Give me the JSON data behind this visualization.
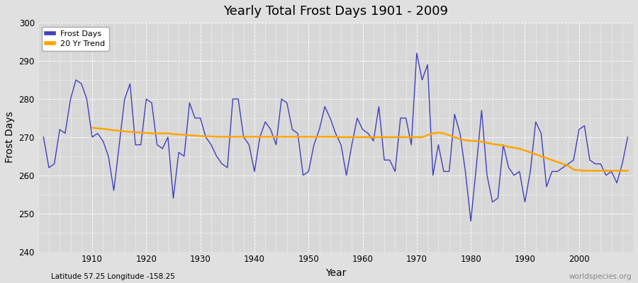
{
  "title": "Yearly Total Frost Days 1901 - 2009",
  "xlabel": "Year",
  "ylabel": "Frost Days",
  "subtitle": "Latitude 57.25 Longitude -158.25",
  "watermark": "worldspecies.org",
  "years": [
    1901,
    1902,
    1903,
    1904,
    1905,
    1906,
    1907,
    1908,
    1909,
    1910,
    1911,
    1912,
    1913,
    1914,
    1915,
    1916,
    1917,
    1918,
    1919,
    1920,
    1921,
    1922,
    1923,
    1924,
    1925,
    1926,
    1927,
    1928,
    1929,
    1930,
    1931,
    1932,
    1933,
    1934,
    1935,
    1936,
    1937,
    1938,
    1939,
    1940,
    1941,
    1942,
    1943,
    1944,
    1945,
    1946,
    1947,
    1948,
    1949,
    1950,
    1951,
    1952,
    1953,
    1954,
    1955,
    1956,
    1957,
    1958,
    1959,
    1960,
    1961,
    1962,
    1963,
    1964,
    1965,
    1966,
    1967,
    1968,
    1969,
    1970,
    1971,
    1972,
    1973,
    1974,
    1975,
    1976,
    1977,
    1978,
    1979,
    1980,
    1981,
    1982,
    1983,
    1984,
    1985,
    1986,
    1987,
    1988,
    1989,
    1990,
    1991,
    1992,
    1993,
    1994,
    1995,
    1996,
    1997,
    1998,
    1999,
    2000,
    2001,
    2002,
    2003,
    2004,
    2005,
    2006,
    2007,
    2008,
    2009
  ],
  "frost_days": [
    270,
    262,
    263,
    272,
    271,
    280,
    285,
    284,
    280,
    270,
    271,
    269,
    265,
    256,
    268,
    280,
    284,
    268,
    268,
    280,
    279,
    268,
    267,
    270,
    254,
    266,
    265,
    279,
    275,
    275,
    270,
    268,
    265,
    263,
    262,
    280,
    280,
    270,
    268,
    261,
    270,
    274,
    272,
    268,
    280,
    279,
    272,
    271,
    260,
    261,
    268,
    272,
    278,
    275,
    271,
    268,
    260,
    268,
    275,
    272,
    271,
    269,
    278,
    264,
    264,
    261,
    275,
    275,
    268,
    292,
    285,
    289,
    260,
    268,
    261,
    261,
    276,
    271,
    261,
    248,
    262,
    277,
    260,
    253,
    254,
    268,
    262,
    260,
    261,
    253,
    261,
    274,
    271,
    257,
    261,
    261,
    262,
    263,
    264,
    272,
    273,
    264,
    263,
    263,
    260,
    261,
    258,
    263,
    270
  ],
  "trend_years": [
    1910,
    1911,
    1912,
    1913,
    1914,
    1915,
    1916,
    1917,
    1918,
    1919,
    1920,
    1921,
    1922,
    1923,
    1924,
    1925,
    1926,
    1927,
    1928,
    1929,
    1930,
    1931,
    1932,
    1933,
    1934,
    1935,
    1936,
    1937,
    1938,
    1939,
    1940,
    1941,
    1942,
    1943,
    1944,
    1945,
    1946,
    1947,
    1948,
    1949,
    1950,
    1951,
    1952,
    1953,
    1954,
    1955,
    1956,
    1957,
    1958,
    1959,
    1960,
    1961,
    1962,
    1963,
    1964,
    1965,
    1966,
    1967,
    1968,
    1969,
    1970,
    1971,
    1972,
    1973,
    1974,
    1975,
    1976,
    1977,
    1978,
    1979,
    1980,
    1981,
    1982,
    1983,
    1984,
    1985,
    1986,
    1987,
    1988,
    1989,
    1990,
    1991,
    1992,
    1993,
    1994,
    1995,
    1996,
    1997,
    1998,
    1999,
    2000,
    2001,
    2002,
    2003,
    2004,
    2005,
    2006,
    2007,
    2008,
    2009
  ],
  "trend_values": [
    272.5,
    272.3,
    272.2,
    272.0,
    271.8,
    271.7,
    271.5,
    271.4,
    271.3,
    271.2,
    271.1,
    271.0,
    271.0,
    271.0,
    271.0,
    270.8,
    270.7,
    270.6,
    270.5,
    270.4,
    270.3,
    270.2,
    270.2,
    270.1,
    270.1,
    270.1,
    270.1,
    270.1,
    270.1,
    270.1,
    270.1,
    270.1,
    270.1,
    270.1,
    270.1,
    270.1,
    270.1,
    270.1,
    270.1,
    270.1,
    270.1,
    270.1,
    270.1,
    270.1,
    270.1,
    270.1,
    270.0,
    270.0,
    270.0,
    270.0,
    270.0,
    270.0,
    270.0,
    270.0,
    270.0,
    270.0,
    270.0,
    270.0,
    270.0,
    270.0,
    270.0,
    270.0,
    270.5,
    271.0,
    271.2,
    271.0,
    270.5,
    270.0,
    269.5,
    269.2,
    269.0,
    269.0,
    268.8,
    268.5,
    268.2,
    268.0,
    267.8,
    267.5,
    267.2,
    267.0,
    266.5,
    266.0,
    265.5,
    265.0,
    264.5,
    264.0,
    263.5,
    263.0,
    262.5,
    261.5,
    261.3,
    261.2,
    261.2,
    261.2,
    261.2,
    261.2,
    261.2,
    261.2,
    261.2,
    261.2
  ],
  "frost_color": "#4040bb",
  "trend_color": "#FFA500",
  "bg_color": "#e0e0e0",
  "plot_bg_color": "#d8d8d8",
  "grid_color": "#ffffff",
  "ylim": [
    240,
    300
  ],
  "yticks": [
    240,
    250,
    260,
    270,
    280,
    290,
    300
  ],
  "xlim": [
    1900,
    2010
  ],
  "xticks": [
    1910,
    1920,
    1930,
    1940,
    1950,
    1960,
    1970,
    1980,
    1990,
    2000
  ]
}
